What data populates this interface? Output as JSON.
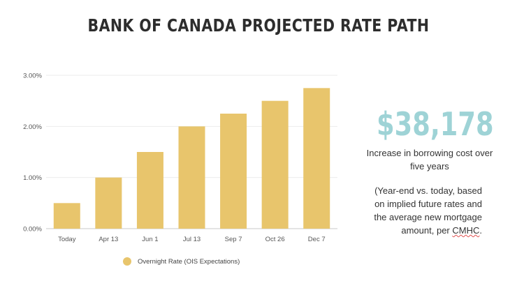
{
  "title": "BANK OF CANADA PROJECTED RATE PATH",
  "accent_color": "#e8c56c",
  "stat_color": "#9ed3d6",
  "chart_data": {
    "type": "bar",
    "categories": [
      "Today",
      "Apr 13",
      "Jun 1",
      "Jul 13",
      "Sep 7",
      "Oct 26",
      "Dec 7"
    ],
    "series": [
      {
        "name": "Overnight Rate (OIS Expectations)",
        "values": [
          0.5,
          1.0,
          1.5,
          2.0,
          2.25,
          2.5,
          2.75
        ]
      }
    ],
    "y_ticks": [
      "0.00%",
      "1.00%",
      "2.00%",
      "3.00%"
    ],
    "ylim": [
      0,
      3
    ],
    "grid": true,
    "legend_position": "bottom"
  },
  "callout": {
    "value": "$38,178",
    "caption": "Increase in borrowing cost over five years",
    "note_before": "(Year-end vs. today, based on implied future rates and the average new mortgage amount, per ",
    "note_link": "CMHC",
    "note_after": "."
  }
}
